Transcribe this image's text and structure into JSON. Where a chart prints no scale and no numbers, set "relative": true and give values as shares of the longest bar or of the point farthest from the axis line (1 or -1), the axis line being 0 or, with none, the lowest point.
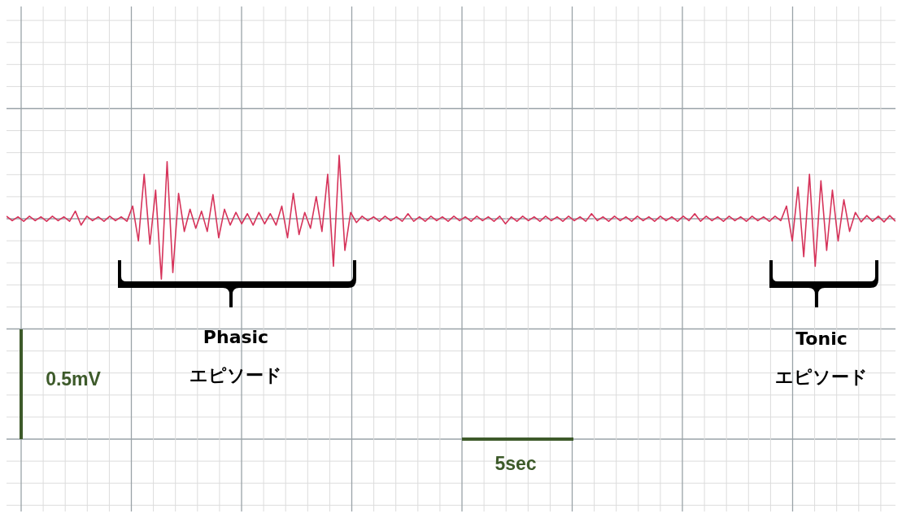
{
  "chart_data": {
    "type": "line",
    "relative": true,
    "grid": true,
    "legend": false,
    "marker": "none",
    "categories": [
      null,
      null,
      null,
      null,
      null,
      null,
      null,
      null,
      null,
      null,
      null,
      null,
      null,
      null,
      null,
      null,
      null,
      null,
      null,
      null,
      null,
      null,
      null,
      null,
      null,
      null,
      null,
      null,
      null,
      null,
      null,
      null,
      null,
      null,
      null,
      null,
      null,
      null,
      null,
      null,
      null,
      null,
      null,
      null,
      null,
      null,
      null,
      null,
      null,
      null,
      null,
      null,
      null,
      null,
      null,
      null,
      null,
      null,
      null,
      null,
      null,
      null,
      null,
      null,
      null,
      null,
      null,
      null,
      null,
      null,
      null,
      null,
      null,
      null,
      null,
      null,
      null,
      null,
      null,
      null,
      null,
      null,
      null,
      null,
      null,
      null,
      null,
      null,
      null,
      null,
      null,
      null,
      null,
      null,
      null,
      null,
      null,
      null,
      null,
      null,
      null,
      null,
      null,
      null,
      null,
      null,
      null,
      null,
      null,
      null,
      null,
      null,
      null,
      null,
      null,
      null,
      null,
      null,
      null,
      null,
      null,
      null,
      null,
      null,
      null,
      null,
      null,
      null,
      null,
      null,
      null,
      null,
      null,
      null,
      null,
      null,
      null,
      null,
      null,
      null,
      null,
      null,
      null,
      null,
      null,
      null,
      null,
      null,
      null,
      null,
      null,
      null,
      null,
      null,
      null,
      null
    ],
    "series": [
      {
        "color": "#d6335a",
        "values": [
          0.04,
          -0.03,
          0.03,
          -0.04,
          0.04,
          -0.03,
          0.03,
          -0.04,
          0.04,
          -0.03,
          0.03,
          -0.04,
          0.12,
          -0.1,
          0.04,
          -0.03,
          0.03,
          -0.04,
          0.04,
          -0.03,
          0.03,
          -0.04,
          0.2,
          -0.35,
          0.7,
          -0.4,
          0.45,
          -0.95,
          0.9,
          -0.85,
          0.4,
          -0.2,
          0.15,
          -0.15,
          0.12,
          -0.2,
          0.38,
          -0.3,
          0.15,
          -0.1,
          0.1,
          -0.08,
          0.08,
          -0.1,
          0.1,
          -0.08,
          0.08,
          -0.1,
          0.2,
          -0.3,
          0.4,
          -0.25,
          0.1,
          -0.15,
          0.35,
          -0.2,
          0.7,
          -0.75,
          1,
          -0.5,
          0.1,
          -0.06,
          0.04,
          -0.03,
          0.03,
          -0.04,
          0.04,
          -0.03,
          0.03,
          -0.04,
          0.08,
          -0.04,
          0.03,
          -0.04,
          0.04,
          -0.03,
          0.03,
          -0.04,
          0.04,
          -0.03,
          0.03,
          -0.04,
          0.04,
          -0.03,
          0.03,
          -0.04,
          0.04,
          -0.08,
          0.03,
          -0.04,
          0.04,
          -0.03,
          0.03,
          -0.04,
          0.04,
          -0.03,
          0.03,
          -0.04,
          0.04,
          -0.03,
          0.03,
          -0.04,
          0.08,
          -0.03,
          0.03,
          -0.04,
          0.04,
          -0.03,
          0.03,
          -0.04,
          0.04,
          -0.03,
          0.03,
          -0.04,
          0.04,
          -0.03,
          0.03,
          -0.04,
          0.04,
          -0.03,
          0.08,
          -0.04,
          0.04,
          -0.03,
          0.03,
          -0.04,
          0.04,
          -0.03,
          0.03,
          -0.04,
          0.04,
          -0.03,
          0.03,
          -0.04,
          0.04,
          -0.03,
          0.2,
          -0.35,
          0.5,
          -0.6,
          0.7,
          -0.75,
          0.6,
          -0.5,
          0.45,
          -0.35,
          0.3,
          -0.2,
          0.1,
          -0.05,
          0.05,
          -0.04,
          0.04,
          -0.05,
          0.05,
          -0.04
        ]
      }
    ],
    "annotations": [
      "Phasic\nエピソード",
      "Tonic\nエピソード",
      "0.5mV",
      "5sec"
    ]
  }
}
